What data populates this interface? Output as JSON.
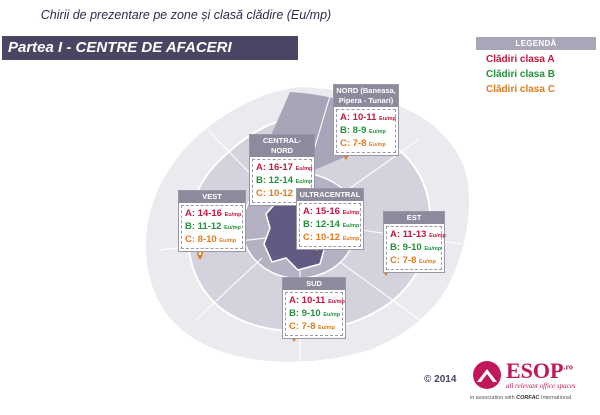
{
  "title": "Chirii de prezentare pe zone și clasă clădire (Eu/mp)",
  "banner": "Partea I - CENTRE DE AFACERI",
  "legend": {
    "heading": "LEGENDĂ",
    "items": [
      {
        "label": "Clădiri clasa A",
        "color": "#c5183e"
      },
      {
        "label": "Clădiri clasa B",
        "color": "#23913a"
      },
      {
        "label": "Clădiri clasa C",
        "color": "#e47a1c"
      }
    ]
  },
  "unit": "Eu/mp",
  "zones": [
    {
      "id": "nord",
      "name": "NORD (Baneasa, Pipera - Tunari)",
      "a": "A: 10-11",
      "b": "B: 8-9",
      "c": "C: 7-8"
    },
    {
      "id": "central-nord",
      "name": "CENTRAL-NORD",
      "a": "A: 16-17",
      "b": "B: 12-14",
      "c": "C: 10-12"
    },
    {
      "id": "vest",
      "name": "VEST",
      "a": "A: 14-16",
      "b": "B: 11-12",
      "c": "C: 8-10"
    },
    {
      "id": "ultracentral",
      "name": "ULTRACENTRAL",
      "a": "A: 15-16",
      "b": "B: 12-14",
      "c": "C: 10-12"
    },
    {
      "id": "est",
      "name": "EST",
      "a": "A: 11-13",
      "b": "B: 9-10",
      "c": "C: 7-8"
    },
    {
      "id": "sud",
      "name": "SUD",
      "a": "A: 10-11",
      "b": "B: 9-10",
      "c": "C: 7-8"
    }
  ],
  "copyright": "© 2014",
  "logo": {
    "name": "ESOP",
    "suffix": ".ro",
    "tagline": "all relevant office spaces",
    "assoc_prefix": "in association with",
    "assoc_brand": "CORFAC",
    "assoc_suffix": "International"
  },
  "colors": {
    "banner": "#4a4563",
    "outer_ring": "#e9e8ee",
    "mid_ring": "#d3d1db",
    "center": "#625a82",
    "pin": "#e47a1c"
  }
}
